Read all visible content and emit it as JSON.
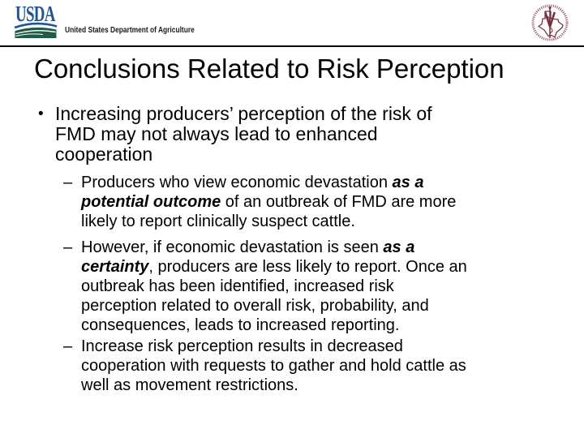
{
  "header": {
    "usda_wordmark": "USDA",
    "department_label": "United States Department of Agriculture",
    "seal_name": "texas-veterinary-circular-seal"
  },
  "slide": {
    "title": "Conclusions Related to Risk Perception",
    "bullets": [
      {
        "level": 1,
        "marker": "•",
        "runs": [
          {
            "t": "Increasing producers’ perception of the risk of\nFMD may not always lead to enhanced\ncooperation",
            "b": false
          }
        ]
      },
      {
        "level": 2,
        "marker": "–",
        "runs": [
          {
            "t": "Producers who view economic devastation ",
            "b": false
          },
          {
            "t": "as a\npotential outcome",
            "b": true
          },
          {
            "t": " of an outbreak of FMD are more\nlikely to report clinically suspect cattle.",
            "b": false
          }
        ]
      },
      {
        "level": 2,
        "marker": "–",
        "runs": [
          {
            "t": "However, if economic devastation is seen ",
            "b": false
          },
          {
            "t": "as a\ncertainty",
            "b": true
          },
          {
            "t": ", producers are less likely to report. Once an\noutbreak has been identified, increased risk\nperception related to overall risk, probability, and\nconsequences, leads to increased reporting.",
            "b": false
          }
        ]
      },
      {
        "level": 2,
        "marker": "–",
        "runs": [
          {
            "t": "Increase risk perception results in decreased\ncooperation with requests to gather and hold cattle as\nwell as movement restrictions.",
            "b": false
          }
        ]
      }
    ]
  },
  "colors": {
    "usda_blue": "#1f5496",
    "usda_green": "#1e5c45",
    "seal_maroon": "#7a3140",
    "divider": "#000000",
    "text": "#000000",
    "background": "#ffffff"
  }
}
